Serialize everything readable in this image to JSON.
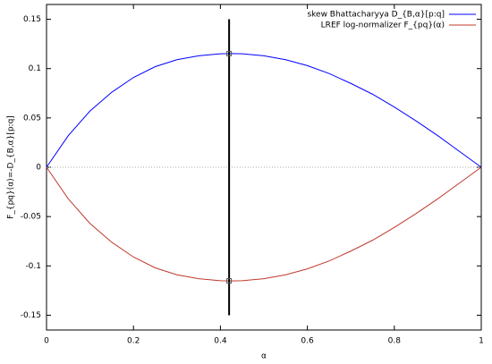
{
  "chart_data": {
    "type": "line",
    "xlabel": "α",
    "ylabel": "F_{pq}(α)=-D_{B,α}[p:q]",
    "x": [
      0,
      0.05,
      0.1,
      0.15,
      0.2,
      0.25,
      0.3,
      0.35,
      0.4,
      0.42,
      0.45,
      0.5,
      0.55,
      0.6,
      0.65,
      0.7,
      0.75,
      0.8,
      0.85,
      0.9,
      0.95,
      1
    ],
    "series": [
      {
        "name": "skew Bhattacharyya D_{B,α}[p:q]",
        "color": "#0000ff",
        "values": [
          0,
          0.032,
          0.057,
          0.076,
          0.091,
          0.102,
          0.109,
          0.113,
          0.115,
          0.1152,
          0.115,
          0.113,
          0.109,
          0.103,
          0.095,
          0.085,
          0.074,
          0.061,
          0.047,
          0.032,
          0.016,
          0
        ]
      },
      {
        "name": "LREF log-normalizer F_{pq}(α)",
        "color": "#c0392b",
        "values": [
          0,
          -0.032,
          -0.057,
          -0.076,
          -0.091,
          -0.102,
          -0.109,
          -0.113,
          -0.115,
          -0.1152,
          -0.115,
          -0.113,
          -0.109,
          -0.103,
          -0.095,
          -0.085,
          -0.074,
          -0.061,
          -0.047,
          -0.032,
          -0.016,
          0
        ]
      }
    ],
    "segment": {
      "x": [
        0.42,
        0.42
      ],
      "values": [
        -0.15,
        0.15
      ],
      "color": "#000000"
    },
    "points": {
      "x": [
        0.42,
        0.42
      ],
      "values": [
        0.1152,
        -0.1152
      ],
      "color": "#555555"
    },
    "zero_line": true,
    "legend": "top-right",
    "xlim": [
      0,
      1
    ],
    "xticks": [
      0,
      0.2,
      0.4,
      0.6,
      0.8,
      1
    ],
    "ylim": [
      -0.165,
      0.165
    ],
    "yticks": [
      -0.15,
      -0.1,
      -0.05,
      0,
      0.05,
      0.1,
      0.15
    ]
  }
}
